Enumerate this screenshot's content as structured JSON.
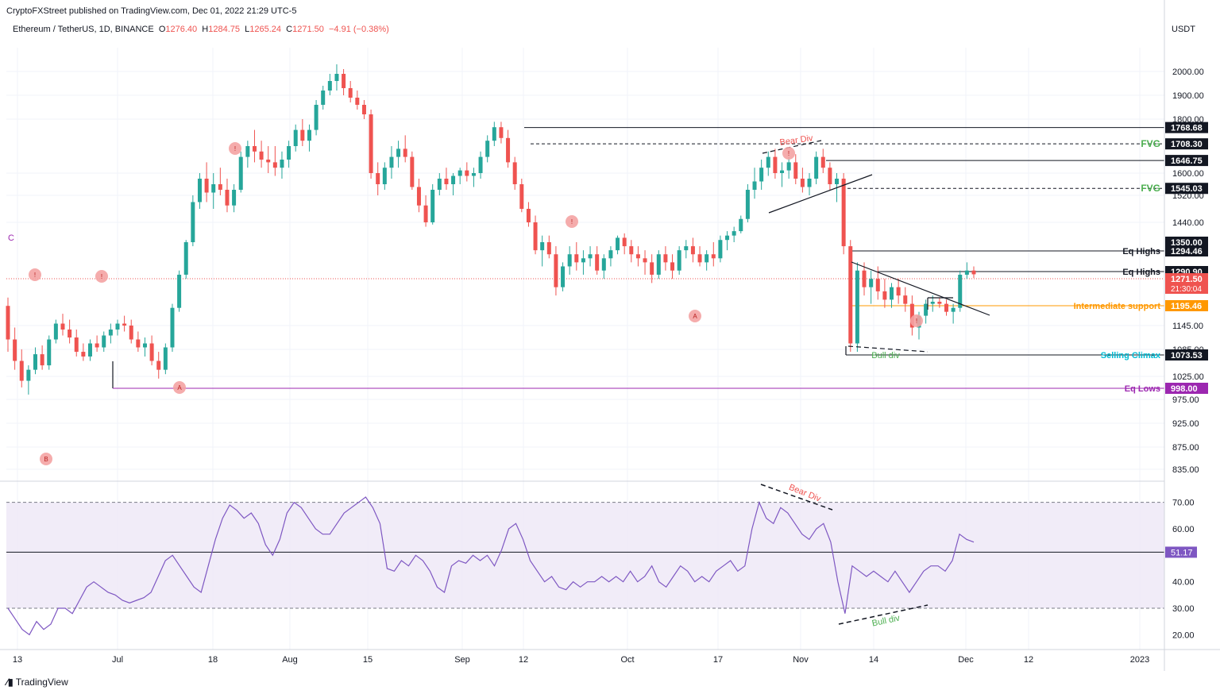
{
  "header": {
    "publisher_line": "CryptoFXStreet published on TradingView.com, Dec 01, 2022 21:29 UTC-5",
    "symbol_line": "Ethereum / TetherUS, 1D, BINANCE",
    "o_label": "O",
    "o_value": "1276.40",
    "h_label": "H",
    "h_value": "1284.75",
    "l_label": "L",
    "l_value": "1265.24",
    "c_label": "C",
    "c_value": "1271.50",
    "change": "−4.91 (−0.38%)",
    "currency": "USDT"
  },
  "footer": {
    "brand": "TradingView"
  },
  "chart_data": [
    {
      "type": "candlestick",
      "title": "Ethereum / TetherUS, 1D, BINANCE",
      "price_axis_ticks": [
        "2000.00",
        "1900.00",
        "1800.00",
        "1600.00",
        "1520.00",
        "1440.00",
        "1145.00",
        "1085.00",
        "1025.00",
        "975.00",
        "925.00",
        "875.00",
        "835.00"
      ],
      "time_axis_ticks": [
        "13",
        "Jul",
        "18",
        "Aug",
        "15",
        "Sep",
        "12",
        "Oct",
        "17",
        "Nov",
        "14",
        "Dec",
        "12",
        "2023"
      ],
      "levels": [
        {
          "label": "",
          "value": "1768.68",
          "color": "#131722",
          "style": "solid"
        },
        {
          "label": "FVG",
          "value": "1708.30",
          "color": "#131722",
          "style": "dashed",
          "label_color": "#4caf50"
        },
        {
          "label": "",
          "value": "1646.75",
          "color": "#131722",
          "style": "solid"
        },
        {
          "label": "FVG",
          "value": "1545.03",
          "color": "#131722",
          "style": "dashed",
          "label_color": "#4caf50"
        },
        {
          "label": "",
          "value": "1350.00",
          "color": "#131722",
          "style": "axis"
        },
        {
          "label": "Eq Highs",
          "value": "1294.46",
          "color": "#131722",
          "style": "solid"
        },
        {
          "label": "Eq Highs",
          "value": "1290.90",
          "color": "#131722",
          "style": "solid"
        },
        {
          "label": "",
          "value": "1271.50",
          "color": "#ef5350",
          "style": "dotted",
          "countdown": "21:30:04"
        },
        {
          "label": "Intermediate support",
          "value": "1195.46",
          "color": "#ff9800",
          "style": "solid",
          "label_color": "#ff9800"
        },
        {
          "label": "Selling Climax",
          "value": "1073.53",
          "color": "#131722",
          "style": "solid",
          "label_color": "#00bcd4"
        },
        {
          "label": "Eq Lows",
          "value": "998.00",
          "color": "#9c27b0",
          "style": "solid",
          "label_color": "#9c27b0"
        }
      ],
      "annotations": [
        "Bear Div",
        "Bull div",
        "C",
        "B",
        "A",
        "A"
      ],
      "candles": [
        [
          1195,
          1215,
          1080,
          1110
        ],
        [
          1110,
          1140,
          1040,
          1060
        ],
        [
          1060,
          1085,
          1000,
          1015
        ],
        [
          1015,
          1050,
          985,
          1040
        ],
        [
          1040,
          1090,
          1030,
          1075
        ],
        [
          1075,
          1095,
          1040,
          1050
        ],
        [
          1050,
          1120,
          1040,
          1110
        ],
        [
          1110,
          1160,
          1100,
          1150
        ],
        [
          1150,
          1175,
          1120,
          1135
        ],
        [
          1135,
          1160,
          1100,
          1115
        ],
        [
          1115,
          1135,
          1070,
          1080
        ],
        [
          1080,
          1100,
          1060,
          1070
        ],
        [
          1070,
          1110,
          1060,
          1100
        ],
        [
          1100,
          1120,
          1080,
          1090
        ],
        [
          1090,
          1130,
          1080,
          1120
        ],
        [
          1120,
          1150,
          1100,
          1135
        ],
        [
          1135,
          1160,
          1120,
          1150
        ],
        [
          1150,
          1170,
          1130,
          1145
        ],
        [
          1145,
          1160,
          1100,
          1110
        ],
        [
          1110,
          1130,
          1080,
          1090
        ],
        [
          1090,
          1115,
          1070,
          1100
        ],
        [
          1100,
          1120,
          1050,
          1060
        ],
        [
          1060,
          1080,
          1020,
          1040
        ],
        [
          1040,
          1100,
          1030,
          1090
        ],
        [
          1090,
          1200,
          1080,
          1190
        ],
        [
          1190,
          1280,
          1180,
          1270
        ],
        [
          1270,
          1360,
          1260,
          1350
        ],
        [
          1350,
          1520,
          1340,
          1500
        ],
        [
          1500,
          1600,
          1480,
          1580
        ],
        [
          1580,
          1640,
          1500,
          1530
        ],
        [
          1530,
          1600,
          1480,
          1560
        ],
        [
          1560,
          1620,
          1520,
          1540
        ],
        [
          1540,
          1580,
          1470,
          1490
        ],
        [
          1490,
          1560,
          1470,
          1540
        ],
        [
          1540,
          1680,
          1530,
          1660
        ],
        [
          1660,
          1720,
          1620,
          1700
        ],
        [
          1700,
          1760,
          1640,
          1680
        ],
        [
          1680,
          1720,
          1620,
          1650
        ],
        [
          1650,
          1700,
          1600,
          1640
        ],
        [
          1640,
          1700,
          1590,
          1620
        ],
        [
          1620,
          1680,
          1580,
          1650
        ],
        [
          1650,
          1720,
          1620,
          1700
        ],
        [
          1700,
          1780,
          1680,
          1760
        ],
        [
          1760,
          1800,
          1700,
          1720
        ],
        [
          1720,
          1780,
          1680,
          1760
        ],
        [
          1760,
          1880,
          1740,
          1860
        ],
        [
          1860,
          1940,
          1840,
          1920
        ],
        [
          1920,
          1990,
          1900,
          1960
        ],
        [
          1960,
          2030,
          1920,
          1990
        ],
        [
          1990,
          2010,
          1900,
          1930
        ],
        [
          1930,
          1960,
          1870,
          1890
        ],
        [
          1890,
          1920,
          1840,
          1860
        ],
        [
          1860,
          1880,
          1800,
          1820
        ],
        [
          1820,
          1840,
          1580,
          1600
        ],
        [
          1600,
          1640,
          1520,
          1560
        ],
        [
          1560,
          1640,
          1540,
          1620
        ],
        [
          1620,
          1700,
          1580,
          1660
        ],
        [
          1660,
          1720,
          1620,
          1690
        ],
        [
          1690,
          1740,
          1640,
          1660
        ],
        [
          1660,
          1680,
          1540,
          1550
        ],
        [
          1550,
          1580,
          1470,
          1490
        ],
        [
          1490,
          1520,
          1420,
          1440
        ],
        [
          1440,
          1560,
          1430,
          1540
        ],
        [
          1540,
          1600,
          1520,
          1580
        ],
        [
          1580,
          1620,
          1540,
          1560
        ],
        [
          1560,
          1600,
          1520,
          1590
        ],
        [
          1590,
          1620,
          1560,
          1610
        ],
        [
          1610,
          1640,
          1570,
          1590
        ],
        [
          1590,
          1620,
          1550,
          1600
        ],
        [
          1600,
          1680,
          1580,
          1660
        ],
        [
          1660,
          1740,
          1640,
          1720
        ],
        [
          1720,
          1790,
          1700,
          1770
        ],
        [
          1770,
          1790,
          1710,
          1730
        ],
        [
          1730,
          1760,
          1620,
          1640
        ],
        [
          1640,
          1660,
          1540,
          1560
        ],
        [
          1560,
          1580,
          1470,
          1480
        ],
        [
          1480,
          1500,
          1420,
          1440
        ],
        [
          1440,
          1460,
          1320,
          1330
        ],
        [
          1330,
          1380,
          1290,
          1350
        ],
        [
          1350,
          1380,
          1310,
          1320
        ],
        [
          1320,
          1340,
          1220,
          1240
        ],
        [
          1240,
          1300,
          1230,
          1290
        ],
        [
          1290,
          1340,
          1270,
          1320
        ],
        [
          1320,
          1350,
          1280,
          1300
        ],
        [
          1300,
          1330,
          1270,
          1310
        ],
        [
          1310,
          1340,
          1290,
          1320
        ],
        [
          1320,
          1340,
          1270,
          1280
        ],
        [
          1280,
          1320,
          1260,
          1310
        ],
        [
          1310,
          1340,
          1290,
          1330
        ],
        [
          1330,
          1380,
          1320,
          1370
        ],
        [
          1370,
          1390,
          1320,
          1340
        ],
        [
          1340,
          1360,
          1300,
          1320
        ],
        [
          1320,
          1340,
          1290,
          1310
        ],
        [
          1310,
          1330,
          1270,
          1300
        ],
        [
          1300,
          1320,
          1250,
          1270
        ],
        [
          1270,
          1330,
          1260,
          1320
        ],
        [
          1320,
          1340,
          1280,
          1300
        ],
        [
          1300,
          1320,
          1260,
          1280
        ],
        [
          1280,
          1340,
          1270,
          1330
        ],
        [
          1330,
          1360,
          1310,
          1340
        ],
        [
          1340,
          1370,
          1300,
          1320
        ],
        [
          1320,
          1340,
          1290,
          1300
        ],
        [
          1300,
          1330,
          1280,
          1320
        ],
        [
          1320,
          1350,
          1290,
          1310
        ],
        [
          1310,
          1380,
          1300,
          1360
        ],
        [
          1360,
          1400,
          1330,
          1380
        ],
        [
          1380,
          1420,
          1350,
          1400
        ],
        [
          1400,
          1460,
          1390,
          1450
        ],
        [
          1450,
          1560,
          1440,
          1540
        ],
        [
          1540,
          1620,
          1510,
          1570
        ],
        [
          1570,
          1650,
          1540,
          1620
        ],
        [
          1620,
          1680,
          1590,
          1660
        ],
        [
          1660,
          1690,
          1580,
          1600
        ],
        [
          1600,
          1640,
          1550,
          1610
        ],
        [
          1610,
          1660,
          1580,
          1640
        ],
        [
          1640,
          1670,
          1560,
          1580
        ],
        [
          1580,
          1620,
          1530,
          1550
        ],
        [
          1550,
          1600,
          1520,
          1580
        ],
        [
          1580,
          1680,
          1560,
          1660
        ],
        [
          1660,
          1690,
          1600,
          1620
        ],
        [
          1620,
          1640,
          1540,
          1560
        ],
        [
          1560,
          1600,
          1500,
          1580
        ],
        [
          1580,
          1600,
          1320,
          1340
        ],
        [
          1340,
          1360,
          1080,
          1100
        ],
        [
          1100,
          1300,
          1080,
          1280
        ],
        [
          1280,
          1300,
          1220,
          1240
        ],
        [
          1240,
          1280,
          1200,
          1260
        ],
        [
          1260,
          1290,
          1210,
          1230
        ],
        [
          1230,
          1260,
          1190,
          1210
        ],
        [
          1210,
          1250,
          1190,
          1240
        ],
        [
          1240,
          1260,
          1200,
          1220
        ],
        [
          1220,
          1240,
          1180,
          1200
        ],
        [
          1200,
          1220,
          1120,
          1140
        ],
        [
          1140,
          1180,
          1110,
          1170
        ],
        [
          1170,
          1210,
          1150,
          1200
        ],
        [
          1200,
          1220,
          1180,
          1205
        ],
        [
          1205,
          1215,
          1190,
          1200
        ],
        [
          1200,
          1210,
          1170,
          1180
        ],
        [
          1180,
          1200,
          1150,
          1190
        ],
        [
          1190,
          1280,
          1180,
          1270
        ],
        [
          1270,
          1300,
          1260,
          1280
        ],
        [
          1280,
          1290,
          1262,
          1271
        ]
      ]
    },
    {
      "type": "line",
      "title": "",
      "ylim": [
        15,
        75
      ],
      "y_ticks": [
        "70.00",
        "60.00",
        "40.00",
        "30.00",
        "20.00"
      ],
      "bands": [
        30,
        70
      ],
      "midline": 51.17,
      "current_value": "51.17",
      "annotations": [
        "Bear Div",
        "Bull div"
      ],
      "series": [
        {
          "name": "",
          "values": [
            30,
            26,
            22,
            20,
            25,
            22,
            24,
            30,
            30,
            28,
            33,
            38,
            40,
            38,
            36,
            35,
            33,
            32,
            33,
            34,
            36,
            42,
            48,
            50,
            46,
            42,
            38,
            36,
            46,
            56,
            64,
            69,
            67,
            64,
            66,
            62,
            54,
            50,
            56,
            66,
            70,
            68,
            64,
            60,
            58,
            58,
            62,
            66,
            68,
            70,
            72,
            68,
            62,
            45,
            44,
            48,
            46,
            50,
            48,
            44,
            38,
            36,
            46,
            48,
            47,
            50,
            48,
            50,
            46,
            52,
            60,
            62,
            56,
            48,
            44,
            40,
            42,
            38,
            37,
            40,
            38,
            40,
            40,
            42,
            40,
            42,
            40,
            44,
            40,
            42,
            46,
            40,
            38,
            42,
            46,
            44,
            40,
            42,
            40,
            44,
            46,
            48,
            44,
            46,
            60,
            70,
            64,
            62,
            68,
            66,
            62,
            58,
            56,
            60,
            62,
            55,
            40,
            28,
            46,
            44,
            42,
            44,
            42,
            40,
            44,
            40,
            36,
            40,
            44,
            46,
            46,
            44,
            48,
            58,
            56,
            55
          ]
        }
      ]
    }
  ]
}
